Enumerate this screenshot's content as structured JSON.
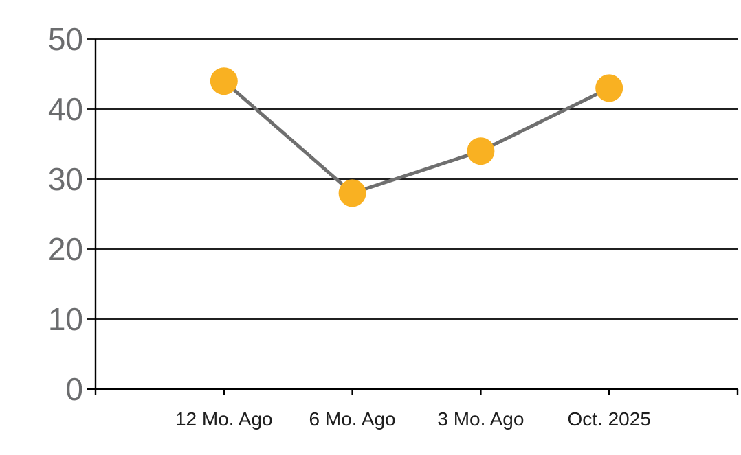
{
  "chart_data": {
    "type": "line",
    "categories": [
      "12 Mo. Ago",
      "6 Mo. Ago",
      "3 Mo. Ago",
      "Oct. 2025"
    ],
    "values": [
      44,
      28,
      34,
      43
    ],
    "series": [
      {
        "name": "value",
        "values": [
          44,
          28,
          34,
          43
        ]
      }
    ],
    "title": "",
    "xlabel": "",
    "ylabel": "",
    "ylim": [
      0,
      50
    ],
    "y_ticks": [
      0,
      10,
      20,
      30,
      40,
      50
    ],
    "grid": "horizontal",
    "legend": "none",
    "marker_style": "filled-circle",
    "colors": {
      "marker": "#F9B122",
      "line": "#6F6F6F",
      "gridline": "#000000",
      "axis": "#000000",
      "y_tick_label": "#6B6C6E",
      "x_tick_label": "#1E1E1E",
      "background": "#FFFFFF"
    }
  }
}
